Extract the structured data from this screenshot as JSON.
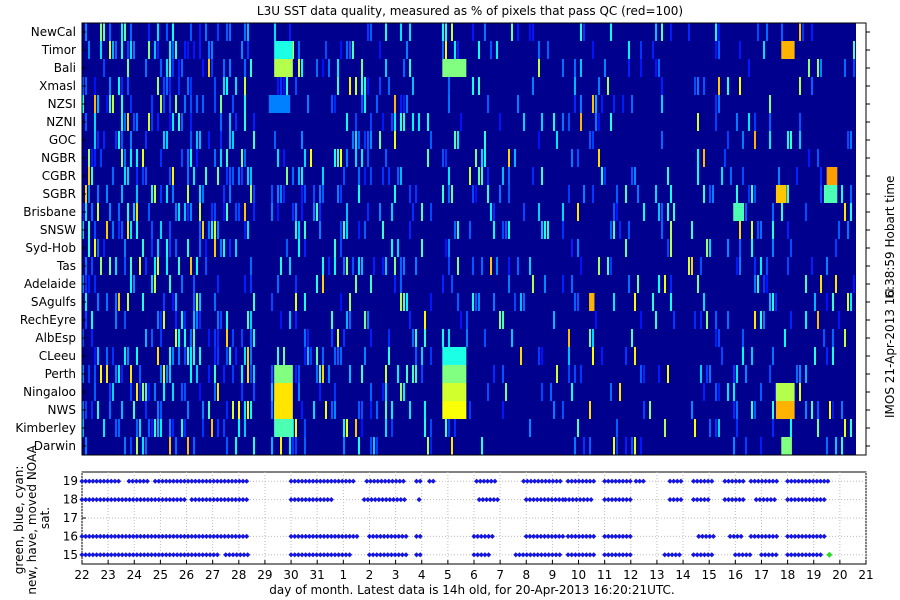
{
  "chart_data": [
    {
      "type": "heatmap",
      "title": "L3U SST data quality, measured as % of pixels that pass QC (red=100)",
      "regions": [
        "NewCal",
        "Timor",
        "Bali",
        "Xmasl",
        "NZSI",
        "NZNI",
        "GOC",
        "NGBR",
        "CGBR",
        "SGBR",
        "Brisbane",
        "SNSW",
        "Syd-Hob",
        "Tas",
        "Adelaide",
        "SAgulfs",
        "RechEyre",
        "AlbEsp",
        "CLeeu",
        "Perth",
        "Ningaloo",
        "NWS",
        "Kimberley",
        "Darwin"
      ],
      "x_ticks": [
        "22",
        "23",
        "24",
        "25",
        "26",
        "27",
        "28",
        "29",
        "30",
        "31",
        "1",
        "2",
        "3",
        "4",
        "5",
        "6",
        "7",
        "8",
        "9",
        "10",
        "11",
        "12",
        "13",
        "14",
        "15",
        "16",
        "17",
        "18",
        "19",
        "20",
        "21"
      ],
      "xlim": [
        22,
        51
      ],
      "colorscale": "jet, 0-100 (red=100)",
      "right_label": "Hobart time",
      "highlights": [
        {
          "region": "Timor",
          "x_start": 29.2,
          "x_end": 29.9,
          "value": 40
        },
        {
          "region": "Bali",
          "x_start": 29.2,
          "x_end": 29.9,
          "value": 55
        },
        {
          "region": "Bali",
          "x_start": 35.5,
          "x_end": 36.4,
          "value": 50
        },
        {
          "region": "NZSI",
          "x_start": 29.0,
          "x_end": 29.8,
          "value": 25
        },
        {
          "region": "CLeeu",
          "x_start": 35.5,
          "x_end": 36.4,
          "value": 40
        },
        {
          "region": "Perth",
          "x_start": 29.2,
          "x_end": 29.9,
          "value": 50
        },
        {
          "region": "Perth",
          "x_start": 35.5,
          "x_end": 36.4,
          "value": 50
        },
        {
          "region": "Ningaloo",
          "x_start": 29.2,
          "x_end": 29.9,
          "value": 65
        },
        {
          "region": "Ningaloo",
          "x_start": 35.5,
          "x_end": 36.4,
          "value": 58
        },
        {
          "region": "NWS",
          "x_start": 29.2,
          "x_end": 29.9,
          "value": 65
        },
        {
          "region": "NWS",
          "x_start": 35.5,
          "x_end": 36.4,
          "value": 62
        },
        {
          "region": "NWS",
          "x_start": 48.0,
          "x_end": 48.7,
          "value": 70
        },
        {
          "region": "Ningaloo",
          "x_start": 48.0,
          "x_end": 48.7,
          "value": 55
        },
        {
          "region": "Kimberley",
          "x_start": 29.2,
          "x_end": 29.9,
          "value": 45
        },
        {
          "region": "Timor",
          "x_start": 48.2,
          "x_end": 48.7,
          "value": 70
        },
        {
          "region": "SGBR",
          "x_start": 48.0,
          "x_end": 48.4,
          "value": 68
        },
        {
          "region": "SGBR",
          "x_start": 49.8,
          "x_end": 50.3,
          "value": 45
        },
        {
          "region": "CGBR",
          "x_start": 49.9,
          "x_end": 50.3,
          "value": 72
        },
        {
          "region": "Brisbane",
          "x_start": 46.4,
          "x_end": 46.8,
          "value": 45
        },
        {
          "region": "Darwin",
          "x_start": 48.2,
          "x_end": 48.6,
          "value": 50
        },
        {
          "region": "SAgulfs",
          "x_start": 41.0,
          "x_end": 41.2,
          "value": 70
        }
      ]
    },
    {
      "type": "scatter",
      "ylabel": "green, blue, cyan: new, have, moved NOAA sat.",
      "yticks": [
        15,
        16,
        17,
        18,
        19
      ],
      "ylim": [
        14.5,
        19.5
      ],
      "xlabel": "day of month. Latest data is 14h old, for 20-Apr-2013 16:20:21UTC.",
      "series": [
        {
          "y": 19,
          "x_ranges": [
            [
              22.0,
              23.5
            ],
            [
              23.8,
              24.6
            ],
            [
              24.8,
              28.4
            ],
            [
              30.0,
              32.5
            ],
            [
              32.9,
              34.4
            ],
            [
              34.8,
              35.0
            ],
            [
              35.3,
              35.5
            ],
            [
              37.1,
              37.8
            ],
            [
              38.9,
              40.3
            ],
            [
              40.6,
              41.7
            ],
            [
              42.0,
              43.0
            ],
            [
              43.2,
              43.6
            ],
            [
              44.5,
              45.0
            ],
            [
              45.4,
              46.1
            ],
            [
              46.6,
              47.4
            ],
            [
              47.6,
              48.6
            ],
            [
              49.0,
              50.6
            ]
          ]
        },
        {
          "y": 18,
          "x_ranges": [
            [
              22.0,
              26.0
            ],
            [
              26.2,
              28.4
            ],
            [
              30.0,
              31.6
            ],
            [
              32.8,
              34.4
            ],
            [
              34.9,
              35.0
            ],
            [
              37.2,
              38.0
            ],
            [
              39.0,
              40.4
            ],
            [
              40.5,
              41.6
            ],
            [
              42.0,
              43.0
            ],
            [
              44.5,
              45.0
            ],
            [
              45.4,
              46.0
            ],
            [
              46.6,
              47.3
            ],
            [
              47.8,
              48.6
            ],
            [
              49.0,
              50.5
            ]
          ]
        },
        {
          "y": 17,
          "x_ranges": []
        },
        {
          "y": 16,
          "x_ranges": [
            [
              22.0,
              28.4
            ],
            [
              30.0,
              32.6
            ],
            [
              33.0,
              34.4
            ],
            [
              34.8,
              35.0
            ],
            [
              37.0,
              37.8
            ],
            [
              39.0,
              40.4
            ],
            [
              40.6,
              41.7
            ],
            [
              42.0,
              43.0
            ],
            [
              45.6,
              46.2
            ],
            [
              46.8,
              47.3
            ],
            [
              47.6,
              48.6
            ],
            [
              49.0,
              50.5
            ]
          ]
        },
        {
          "y": 15,
          "x_ranges": [
            [
              22.0,
              27.3
            ],
            [
              27.5,
              28.4
            ],
            [
              30.0,
              32.3
            ],
            [
              33.0,
              34.4
            ],
            [
              34.8,
              35.0
            ],
            [
              37.0,
              37.6
            ],
            [
              38.6,
              40.4
            ],
            [
              40.6,
              41.7
            ],
            [
              42.0,
              43.0
            ],
            [
              44.3,
              44.9
            ],
            [
              45.4,
              46.1
            ],
            [
              47.0,
              47.6
            ],
            [
              48.0,
              48.6
            ],
            [
              49.0,
              50.3
            ]
          ]
        }
      ],
      "new_point": {
        "x": 50.6,
        "y": 15,
        "color": "#22dd22"
      }
    }
  ],
  "footer": {
    "credit": "IMOS 21-Apr-2013 16:38:59 Hobart time"
  },
  "colors": {
    "background": "#00008f",
    "marker": "#1515e0",
    "axis": "#000000"
  }
}
